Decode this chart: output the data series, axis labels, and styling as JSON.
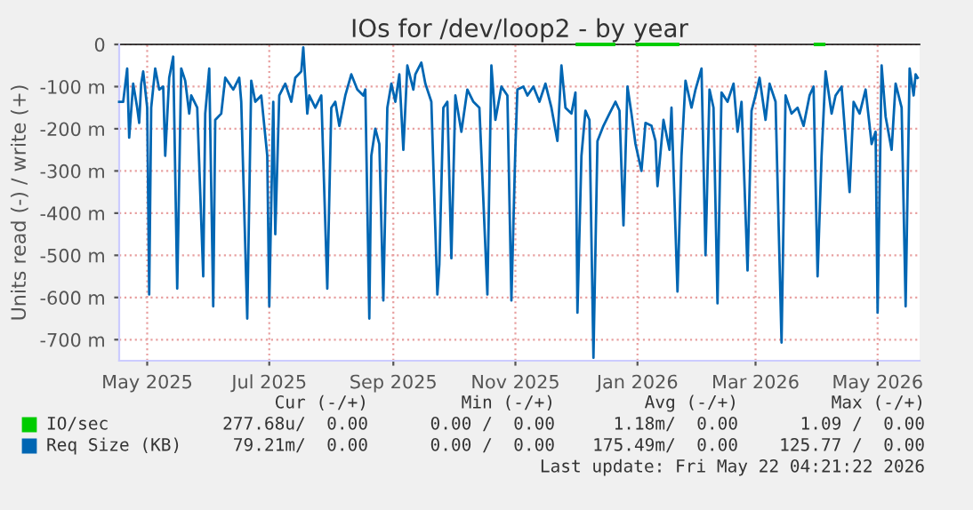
{
  "chart_data": {
    "type": "line",
    "title": "IOs for /dev/loop2 - by year",
    "ylabel": "Units read (-) / write (+)",
    "xlim": [
      "2025-04-17",
      "2026-05-22"
    ],
    "ylim": [
      -750,
      0
    ],
    "xticks": [
      {
        "value": "2025-05-01",
        "label": "May 2025"
      },
      {
        "value": "2025-07-01",
        "label": "Jul 2025"
      },
      {
        "value": "2025-09-01",
        "label": "Sep 2025"
      },
      {
        "value": "2025-11-01",
        "label": "Nov 2025"
      },
      {
        "value": "2026-01-01",
        "label": "Jan 2026"
      },
      {
        "value": "2026-03-01",
        "label": "Mar 2026"
      },
      {
        "value": "2026-05-01",
        "label": "May 2026"
      }
    ],
    "yticks": [
      0,
      {
        "value": -100,
        "label": "-100 m"
      },
      {
        "value": -200,
        "label": "-200 m"
      },
      {
        "value": -300,
        "label": "-300 m"
      },
      {
        "value": -400,
        "label": "-400 m"
      },
      {
        "value": -500,
        "label": "-500 m"
      },
      {
        "value": -600,
        "label": "-600 m"
      },
      {
        "value": -700,
        "label": "-700 m"
      }
    ],
    "grid": true,
    "legend": "bottom",
    "marker": "none",
    "line_style": "solid",
    "ref_lines": [
      {
        "axis": "y",
        "value": 0,
        "color": "#000000"
      }
    ],
    "series": [
      {
        "name": "IO/sec",
        "color": "#00cc00",
        "x": [
          "2025-12-02",
          "2025-12-20",
          "2025-12-21",
          "2026-01-01",
          "2026-01-21",
          "2026-01-22",
          "2026-03-31",
          "2026-04-04"
        ],
        "values": [
          0,
          0,
          null,
          0,
          0,
          null,
          0,
          0
        ]
      },
      {
        "name": "Req Size (KB)",
        "color": "#0066b3",
        "x": [
          "2025-04-17",
          "2025-04-19",
          "2025-04-21",
          "2025-04-22",
          "2025-04-24",
          "2025-04-26",
          "2025-04-27",
          "2025-04-28",
          "2025-04-29",
          "2025-05-01",
          "2025-05-02",
          "2025-05-03",
          "2025-05-05",
          "2025-05-07",
          "2025-05-09",
          "2025-05-10",
          "2025-05-12",
          "2025-05-14",
          "2025-05-16",
          "2025-05-18",
          "2025-05-20",
          "2025-05-22",
          "2025-05-23",
          "2025-05-26",
          "2025-05-29",
          "2025-05-30",
          "2025-06-01",
          "2025-06-03",
          "2025-06-04",
          "2025-06-07",
          "2025-06-09",
          "2025-06-13",
          "2025-06-16",
          "2025-06-17",
          "2025-06-20",
          "2025-06-22",
          "2025-06-24",
          "2025-06-27",
          "2025-06-30",
          "2025-07-01",
          "2025-07-03",
          "2025-07-04",
          "2025-07-06",
          "2025-07-09",
          "2025-07-12",
          "2025-07-14",
          "2025-07-17",
          "2025-07-18",
          "2025-07-20",
          "2025-07-21",
          "2025-07-24",
          "2025-07-27",
          "2025-07-30",
          "2025-08-01",
          "2025-08-03",
          "2025-08-05",
          "2025-08-08",
          "2025-08-11",
          "2025-08-14",
          "2025-08-17",
          "2025-08-18",
          "2025-08-20",
          "2025-08-21",
          "2025-08-23",
          "2025-08-25",
          "2025-08-27",
          "2025-08-29",
          "2025-08-31",
          "2025-09-02",
          "2025-09-04",
          "2025-09-06",
          "2025-09-08",
          "2025-09-11",
          "2025-09-12",
          "2025-09-15",
          "2025-09-17",
          "2025-09-20",
          "2025-09-23",
          "2025-09-24",
          "2025-09-26",
          "2025-09-28",
          "2025-09-30",
          "2025-10-02",
          "2025-10-05",
          "2025-10-08",
          "2025-10-11",
          "2025-10-14",
          "2025-10-18",
          "2025-10-20",
          "2025-10-22",
          "2025-10-25",
          "2025-10-28",
          "2025-10-30",
          "2025-11-01",
          "2025-11-02",
          "2025-11-05",
          "2025-11-07",
          "2025-11-10",
          "2025-11-13",
          "2025-11-16",
          "2025-11-19",
          "2025-11-22",
          "2025-11-24",
          "2025-11-26",
          "2025-11-29",
          "2025-12-01",
          "2025-12-02",
          "2025-12-04",
          "2025-12-06",
          "2025-12-08",
          "2025-12-10",
          "2025-12-12",
          "2025-12-15",
          "2025-12-18",
          "2025-12-21",
          "2025-12-23",
          "2025-12-25",
          "2025-12-27",
          "2025-12-29",
          "2025-12-31",
          "2026-01-03",
          "2026-01-05",
          "2026-01-08",
          "2026-01-10",
          "2026-01-11",
          "2026-01-14",
          "2026-01-17",
          "2026-01-18",
          "2026-01-21",
          "2026-01-23",
          "2026-01-25",
          "2026-01-28",
          "2026-01-30",
          "2026-02-02",
          "2026-02-04",
          "2026-02-06",
          "2026-02-08",
          "2026-02-10",
          "2026-02-12",
          "2026-02-15",
          "2026-02-18",
          "2026-02-20",
          "2026-02-22",
          "2026-02-25",
          "2026-02-27",
          "2026-03-01",
          "2026-03-03",
          "2026-03-06",
          "2026-03-08",
          "2026-03-11",
          "2026-03-14",
          "2026-03-16",
          "2026-03-19",
          "2026-03-22",
          "2026-03-25",
          "2026-03-28",
          "2026-03-30",
          "2026-04-01",
          "2026-04-03",
          "2026-04-05",
          "2026-04-08",
          "2026-04-10",
          "2026-04-13",
          "2026-04-17",
          "2026-04-19",
          "2026-04-22",
          "2026-04-25",
          "2026-04-28",
          "2026-04-30",
          "2026-05-01",
          "2026-05-03",
          "2026-05-05",
          "2026-05-08",
          "2026-05-10",
          "2026-05-13",
          "2026-05-15",
          "2026-05-17",
          "2026-05-19",
          "2026-05-20",
          "2026-05-21"
        ],
        "values": [
          -136,
          -136,
          -57,
          -221,
          -93,
          -150,
          -186,
          -93,
          -64,
          -150,
          -593,
          -150,
          -57,
          -107,
          -100,
          -264,
          -79,
          -29,
          -579,
          -57,
          -86,
          -164,
          -121,
          -150,
          -550,
          -164,
          -57,
          -621,
          -179,
          -164,
          -79,
          -107,
          -79,
          -136,
          -650,
          -86,
          -136,
          -121,
          -264,
          -621,
          -136,
          -450,
          -121,
          -93,
          -136,
          -79,
          -64,
          -7,
          -164,
          -121,
          -150,
          -121,
          -579,
          -150,
          -136,
          -193,
          -121,
          -71,
          -107,
          -121,
          -107,
          -650,
          -264,
          -200,
          -236,
          -607,
          -150,
          -93,
          -136,
          -71,
          -250,
          -50,
          -107,
          -71,
          -43,
          -93,
          -136,
          -593,
          -521,
          -150,
          -136,
          -507,
          -121,
          -207,
          -107,
          -136,
          -150,
          -593,
          -50,
          -179,
          -100,
          -121,
          -607,
          -243,
          -107,
          -100,
          -121,
          -100,
          -136,
          -93,
          -150,
          -229,
          -50,
          -150,
          -164,
          -114,
          -636,
          -264,
          -157,
          -179,
          -743,
          -229,
          -193,
          -164,
          -136,
          -157,
          -429,
          -100,
          -164,
          -236,
          -300,
          -186,
          -193,
          -229,
          -336,
          -179,
          -250,
          -150,
          -586,
          -264,
          -86,
          -150,
          -107,
          -57,
          -500,
          -107,
          -150,
          -614,
          -114,
          -136,
          -93,
          -207,
          -136,
          -536,
          -157,
          -121,
          -79,
          -179,
          -93,
          -136,
          -707,
          -121,
          -164,
          -150,
          -193,
          -121,
          -100,
          -550,
          -264,
          -64,
          -164,
          -121,
          -100,
          -350,
          -136,
          -164,
          -107,
          -236,
          -207,
          -636,
          -50,
          -171,
          -250,
          -93,
          -150,
          -621,
          -57,
          -121,
          -71,
          -79
        ]
      }
    ],
    "annotations": [
      "Cur (-/+)",
      "Min (-/+)",
      "Avg (-/+)",
      "Max (-/+)",
      "277.68u/  0.00",
      "0.00 /  0.00",
      "1.18m/  0.00",
      "1.09 /  0.00",
      "79.21m/  0.00",
      "0.00 /  0.00",
      "175.49m/  0.00",
      "125.77 /  0.00",
      "Last update: Fri May 22 04:21:22 2026"
    ]
  }
}
